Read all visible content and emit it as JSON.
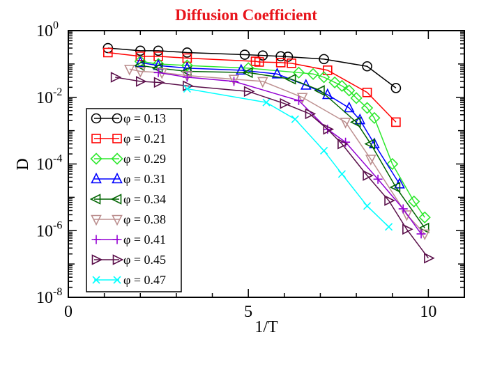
{
  "chart_data": {
    "type": "line",
    "title": "Diffusion Coefficient",
    "xlabel": "1/T",
    "ylabel": "D",
    "xlim": [
      0,
      11
    ],
    "ylim_log10": [
      -8,
      0
    ],
    "x_ticks": [
      {
        "value": 0,
        "label": "0"
      },
      {
        "value": 5,
        "label": "5"
      },
      {
        "value": 10,
        "label": "10"
      }
    ],
    "y_ticks": [
      {
        "value": 0,
        "base": "10",
        "exp": "0"
      },
      {
        "value": -2,
        "base": "10",
        "exp": "-2"
      },
      {
        "value": -4,
        "base": "10",
        "exp": "-4"
      },
      {
        "value": -6,
        "base": "10",
        "exp": "-6"
      },
      {
        "value": -8,
        "base": "10",
        "exp": "-8"
      }
    ],
    "legend_symbol": "φ",
    "legend_position": "bottom-left",
    "series": [
      {
        "name": "0.13",
        "color": "#000000",
        "marker": "circle",
        "x": [
          1.1,
          2.0,
          2.5,
          3.3,
          4.9,
          5.4,
          5.9,
          6.1,
          7.1,
          8.3,
          9.1
        ],
        "y": [
          0.3,
          0.25,
          0.25,
          0.22,
          0.19,
          0.18,
          0.17,
          0.165,
          0.14,
          0.085,
          0.019
        ]
      },
      {
        "name": "0.21",
        "color": "#ff0000",
        "marker": "square",
        "x": [
          1.1,
          2.0,
          2.5,
          3.3,
          5.2,
          5.3,
          5.9,
          6.2,
          7.2,
          8.3,
          9.1
        ],
        "y": [
          0.22,
          0.17,
          0.17,
          0.15,
          0.12,
          0.115,
          0.11,
          0.105,
          0.065,
          0.014,
          0.0018
        ]
      },
      {
        "name": "0.29",
        "color": "#2ee82e",
        "marker": "diamond",
        "x": [
          2.0,
          2.5,
          3.3,
          5.0,
          6.4,
          6.8,
          7.1,
          7.4,
          7.6,
          7.8,
          8.0,
          8.3,
          8.5,
          9.0,
          9.6,
          9.9
        ],
        "y": [
          0.12,
          0.1,
          0.09,
          0.075,
          0.055,
          0.05,
          0.04,
          0.028,
          0.022,
          0.016,
          0.0095,
          0.0048,
          0.0024,
          0.0001,
          7.5e-06,
          2.5e-06
        ]
      },
      {
        "name": "0.31",
        "color": "#0000ff",
        "marker": "triangle-up",
        "x": [
          2.0,
          2.5,
          3.3,
          4.8,
          5.8,
          6.6,
          7.2,
          7.8,
          8.1,
          8.5,
          9.2
        ],
        "y": [
          0.11,
          0.09,
          0.075,
          0.065,
          0.05,
          0.023,
          0.012,
          0.0048,
          0.0021,
          0.0004,
          2.5e-05
        ]
      },
      {
        "name": "0.34",
        "color": "#006400",
        "marker": "triangle-left",
        "x": [
          2.0,
          2.5,
          3.3,
          5.0,
          6.2,
          7.0,
          8.0,
          8.4,
          9.1,
          9.9
        ],
        "y": [
          0.09,
          0.075,
          0.06,
          0.055,
          0.035,
          0.016,
          0.0018,
          0.0004,
          2e-05,
          1.2e-06
        ]
      },
      {
        "name": "0.38",
        "color": "#bc8f8f",
        "marker": "triangle-down",
        "x": [
          1.7,
          2.0,
          2.6,
          3.3,
          4.6,
          5.4,
          6.5,
          7.7,
          8.4,
          9.4,
          9.9
        ],
        "y": [
          0.07,
          0.06,
          0.055,
          0.045,
          0.035,
          0.03,
          0.01,
          0.0018,
          0.00014,
          3e-06,
          8e-07
        ]
      },
      {
        "name": "0.41",
        "color": "#9400d3",
        "marker": "plus",
        "x": [
          2.5,
          3.3,
          4.6,
          6.4,
          7.2,
          7.7,
          8.6,
          9.3,
          9.8
        ],
        "y": [
          0.055,
          0.04,
          0.03,
          0.008,
          0.0011,
          0.00045,
          3.5e-05,
          4.5e-06,
          8e-07
        ]
      },
      {
        "name": "0.45",
        "color": "#5a0f4a",
        "marker": "triangle-right",
        "x": [
          1.3,
          2.0,
          2.5,
          3.3,
          5.0,
          6.0,
          6.7,
          7.2,
          7.6,
          8.3,
          8.9,
          9.4,
          10.0
        ],
        "y": [
          0.04,
          0.03,
          0.028,
          0.022,
          0.015,
          0.0065,
          0.0032,
          0.0011,
          0.0004,
          4.5e-05,
          8e-06,
          1.1e-06,
          1.5e-07
        ]
      },
      {
        "name": "0.47",
        "color": "#00ffff",
        "marker": "x",
        "x": [
          3.3,
          5.5,
          6.3,
          7.1,
          7.6,
          8.3,
          8.9
        ],
        "y": [
          0.018,
          0.007,
          0.0022,
          0.00025,
          5e-05,
          5.5e-06,
          1.3e-06
        ]
      }
    ]
  }
}
